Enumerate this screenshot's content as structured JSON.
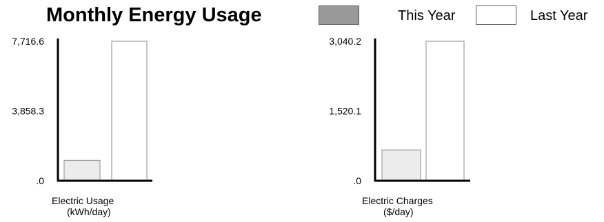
{
  "title": "Monthly Energy Usage",
  "legend": [
    {
      "label": "This Year",
      "color": "#999999"
    },
    {
      "label": "Last Year",
      "color": "#ffffff"
    }
  ],
  "chart_data": [
    {
      "type": "bar",
      "categories": [
        "This Year",
        "Last Year"
      ],
      "values": [
        1125,
        7716.6
      ],
      "ylim": [
        0,
        7716.6
      ],
      "yticks": [
        ".0",
        "3,858.3",
        "7,716.6"
      ],
      "xlabel_lines": [
        "Electric Usage",
        "(kWh/day)"
      ],
      "bar_fill": [
        "#ececec",
        "#ffffff"
      ]
    },
    {
      "type": "bar",
      "categories": [
        "This Year",
        "Last Year"
      ],
      "values": [
        672,
        3040.2
      ],
      "ylim": [
        0,
        3040.2
      ],
      "yticks": [
        ".0",
        "1,520.1",
        "3,040.2"
      ],
      "xlabel_lines": [
        "Electric Charges",
        "($/day)"
      ],
      "bar_fill": [
        "#ececec",
        "#ffffff"
      ]
    }
  ]
}
